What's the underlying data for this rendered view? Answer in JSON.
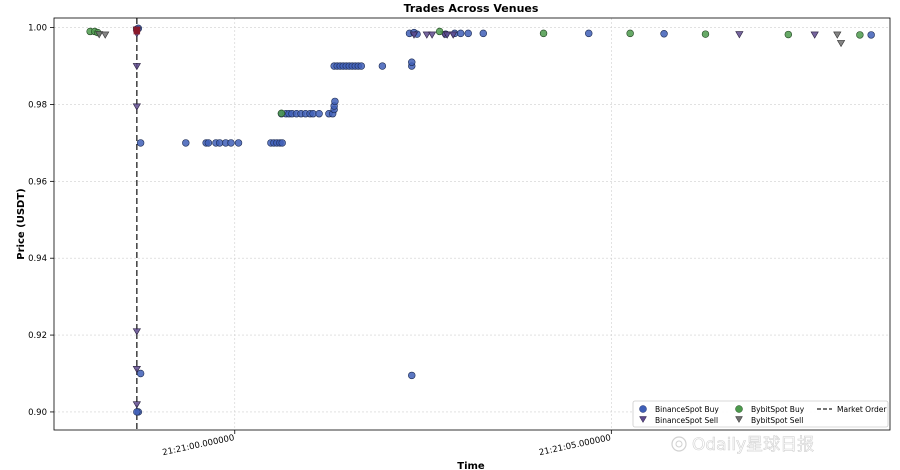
{
  "chart_data": {
    "type": "scatter",
    "title": "Trades Across Venues",
    "xlabel": "Time",
    "ylabel": "Price (USDT)",
    "x_unit": "seconds relative to 21:21:00.000000",
    "xlim": [
      -2.4,
      8.7
    ],
    "ylim": [
      0.8953,
      1.0025
    ],
    "y_ticks": [
      0.9,
      0.92,
      0.94,
      0.96,
      0.98,
      1.0
    ],
    "y_tick_labels": [
      "0.90",
      "0.92",
      "0.94",
      "0.96",
      "0.98",
      "1.00"
    ],
    "x_ticks": [
      0,
      5
    ],
    "x_tick_labels": [
      "21:21:00.000000",
      "21:21:05.000000"
    ],
    "grid": true,
    "legend_position": "bottom-right",
    "market_order": {
      "label": "Market Order",
      "x": -1.3
    },
    "series": [
      {
        "name": "BinanceSpot Buy",
        "marker": "circle",
        "color": "#3f5fb7",
        "points": [
          [
            -1.3,
            0.9996
          ],
          [
            -1.3,
            0.9995
          ],
          [
            -1.28,
            0.9998
          ],
          [
            -1.25,
            0.97
          ],
          [
            -1.25,
            0.91
          ],
          [
            -1.28,
            0.9
          ],
          [
            -1.3,
            0.9
          ],
          [
            -0.65,
            0.97
          ],
          [
            -0.38,
            0.97
          ],
          [
            -0.35,
            0.97
          ],
          [
            -0.25,
            0.97
          ],
          [
            -0.2,
            0.97
          ],
          [
            -0.12,
            0.97
          ],
          [
            -0.05,
            0.97
          ],
          [
            0.05,
            0.97
          ],
          [
            0.48,
            0.97
          ],
          [
            0.52,
            0.97
          ],
          [
            0.56,
            0.97
          ],
          [
            0.6,
            0.97
          ],
          [
            0.63,
            0.97
          ],
          [
            0.62,
            0.9776
          ],
          [
            0.68,
            0.9776
          ],
          [
            0.72,
            0.9776
          ],
          [
            0.76,
            0.9776
          ],
          [
            0.82,
            0.9776
          ],
          [
            0.88,
            0.9776
          ],
          [
            0.94,
            0.9776
          ],
          [
            1.0,
            0.9776
          ],
          [
            1.04,
            0.9776
          ],
          [
            1.12,
            0.9776
          ],
          [
            1.25,
            0.9776
          ],
          [
            1.3,
            0.9776
          ],
          [
            1.32,
            0.9787
          ],
          [
            1.32,
            0.9796
          ],
          [
            1.33,
            0.9808
          ],
          [
            1.32,
            0.99
          ],
          [
            1.36,
            0.99
          ],
          [
            1.4,
            0.99
          ],
          [
            1.44,
            0.99
          ],
          [
            1.48,
            0.99
          ],
          [
            1.52,
            0.99
          ],
          [
            1.56,
            0.99
          ],
          [
            1.6,
            0.99
          ],
          [
            1.64,
            0.99
          ],
          [
            1.68,
            0.99
          ],
          [
            1.96,
            0.99
          ],
          [
            2.35,
            0.99
          ],
          [
            2.35,
            0.991
          ],
          [
            2.35,
            0.9095
          ],
          [
            2.32,
            0.9985
          ],
          [
            2.38,
            0.9987
          ],
          [
            2.42,
            0.9983
          ],
          [
            2.8,
            0.9983
          ],
          [
            2.92,
            0.9985
          ],
          [
            3.0,
            0.9985
          ],
          [
            3.1,
            0.9985
          ],
          [
            3.3,
            0.9985
          ],
          [
            4.7,
            0.9985
          ],
          [
            5.7,
            0.9984
          ],
          [
            8.45,
            0.9981
          ]
        ]
      },
      {
        "name": "BinanceSpot Sell",
        "marker": "triangle-down",
        "color": "#5e4a8d",
        "points": [
          [
            -1.3,
            0.9995
          ],
          [
            -1.3,
            0.999
          ],
          [
            -1.3,
            0.9985
          ],
          [
            -1.3,
            0.99
          ],
          [
            -1.3,
            0.9795
          ],
          [
            -1.3,
            0.921
          ],
          [
            -1.3,
            0.9112
          ],
          [
            -1.3,
            0.902
          ],
          [
            2.38,
            0.9982
          ],
          [
            2.55,
            0.9982
          ],
          [
            2.62,
            0.9982
          ],
          [
            2.78,
            0.9983
          ],
          [
            2.82,
            0.9982
          ],
          [
            2.9,
            0.9982
          ],
          [
            6.7,
            0.9983
          ],
          [
            7.7,
            0.9982
          ]
        ]
      },
      {
        "name": "BybitSpot Buy",
        "marker": "circle",
        "color": "#4c9a4c",
        "points": [
          [
            -1.92,
            0.999
          ],
          [
            -1.86,
            0.999
          ],
          [
            -1.82,
            0.9987
          ],
          [
            0.62,
            0.9777
          ],
          [
            2.72,
            0.999
          ],
          [
            4.1,
            0.9985
          ],
          [
            5.25,
            0.9985
          ],
          [
            6.25,
            0.9983
          ],
          [
            7.35,
            0.9982
          ],
          [
            8.3,
            0.9981
          ]
        ]
      },
      {
        "name": "BybitSpot Sell",
        "marker": "triangle-down",
        "color": "#6f6f6f",
        "points": [
          [
            -1.8,
            0.9983
          ],
          [
            -1.72,
            0.9982
          ],
          [
            -1.3,
            0.9993
          ],
          [
            8.0,
            0.9982
          ],
          [
            8.05,
            0.996
          ]
        ]
      }
    ],
    "markers_dark_red": {
      "note": "",
      "points": []
    }
  },
  "watermark": {
    "text": "Odaily星球日报",
    "icon": "odaily-logo-icon"
  }
}
